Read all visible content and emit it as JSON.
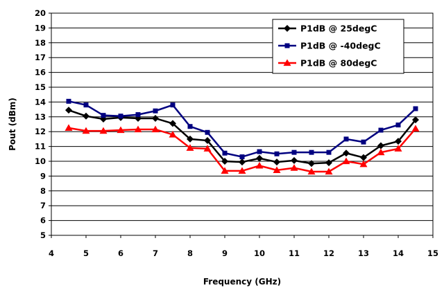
{
  "chart_data": {
    "type": "line",
    "title": "",
    "xlabel": "Frequency (GHz)",
    "ylabel": "Pout (dBm)",
    "xlim": [
      4,
      15
    ],
    "ylim": [
      5,
      20
    ],
    "xticks": [
      "4",
      "5",
      "6",
      "7",
      "8",
      "9",
      "10",
      "11",
      "12",
      "13",
      "14",
      "15"
    ],
    "yticks": [
      "5",
      "6",
      "7",
      "8",
      "9",
      "10",
      "11",
      "12",
      "13",
      "14",
      "15",
      "16",
      "17",
      "18",
      "19",
      "20"
    ],
    "grid": "horizontal",
    "legend_position": "top-right",
    "x": [
      4.5,
      5,
      5.5,
      6,
      6.5,
      7,
      7.5,
      8,
      8.5,
      9,
      9.5,
      10,
      10.5,
      11,
      11.5,
      12,
      12.5,
      13,
      13.5,
      14,
      14.5
    ],
    "series": [
      {
        "name": "P1dB @ 25degC",
        "color": "#000000",
        "marker": "diamond",
        "values": [
          13.45,
          13.05,
          12.85,
          12.95,
          12.9,
          12.9,
          12.55,
          11.5,
          11.4,
          10.0,
          9.95,
          10.2,
          9.95,
          10.05,
          9.85,
          9.9,
          10.55,
          10.25,
          11.05,
          11.35,
          12.8
        ]
      },
      {
        "name": "P1dB @ -40degC",
        "color": "#000080",
        "marker": "square",
        "values": [
          14.05,
          13.8,
          13.1,
          13.05,
          13.15,
          13.4,
          13.8,
          12.35,
          11.95,
          10.55,
          10.3,
          10.65,
          10.5,
          10.6,
          10.6,
          10.6,
          11.5,
          11.3,
          12.1,
          12.45,
          13.55
        ]
      },
      {
        "name": "P1dB @ 80degC",
        "color": "#ff0000",
        "marker": "triangle",
        "values": [
          12.25,
          12.05,
          12.05,
          12.1,
          12.15,
          12.15,
          11.8,
          10.9,
          10.85,
          9.35,
          9.35,
          9.7,
          9.4,
          9.55,
          9.3,
          9.3,
          10.0,
          9.8,
          10.6,
          10.85,
          12.2
        ]
      }
    ]
  }
}
